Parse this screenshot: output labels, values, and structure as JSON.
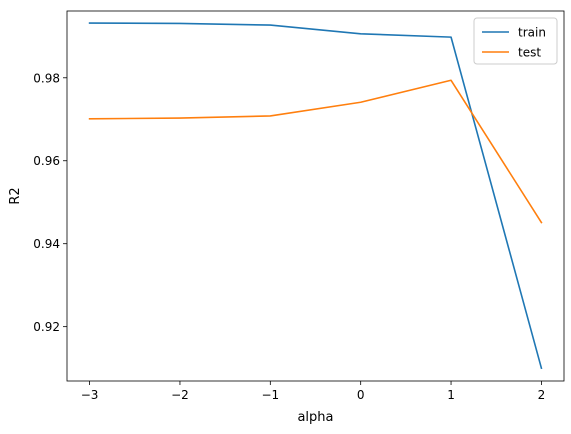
{
  "chart_data": {
    "type": "line",
    "xlabel": "alpha",
    "ylabel": "R2",
    "x": [
      -3,
      -2,
      -1,
      0,
      1,
      2
    ],
    "xlim": [
      -3.25,
      2.25
    ],
    "ylim": [
      0.9069,
      0.9961
    ],
    "x_ticks": [
      -3,
      -2,
      -1,
      0,
      1,
      2
    ],
    "x_tick_labels": [
      "−3",
      "−2",
      "−1",
      "0",
      "1",
      "2"
    ],
    "y_ticks": [
      0.92,
      0.94,
      0.96,
      0.98
    ],
    "y_tick_labels": [
      "0.92",
      "0.94",
      "0.96",
      "0.98"
    ],
    "grid": false,
    "legend_position": "top-right",
    "series": [
      {
        "name": "train",
        "color": "#1f77b4",
        "values": [
          0.9932,
          0.9931,
          0.9927,
          0.9906,
          0.9898,
          0.91
        ]
      },
      {
        "name": "test",
        "color": "#ff7f0e",
        "values": [
          0.9701,
          0.9703,
          0.9708,
          0.9741,
          0.9794,
          0.9451
        ]
      }
    ]
  }
}
